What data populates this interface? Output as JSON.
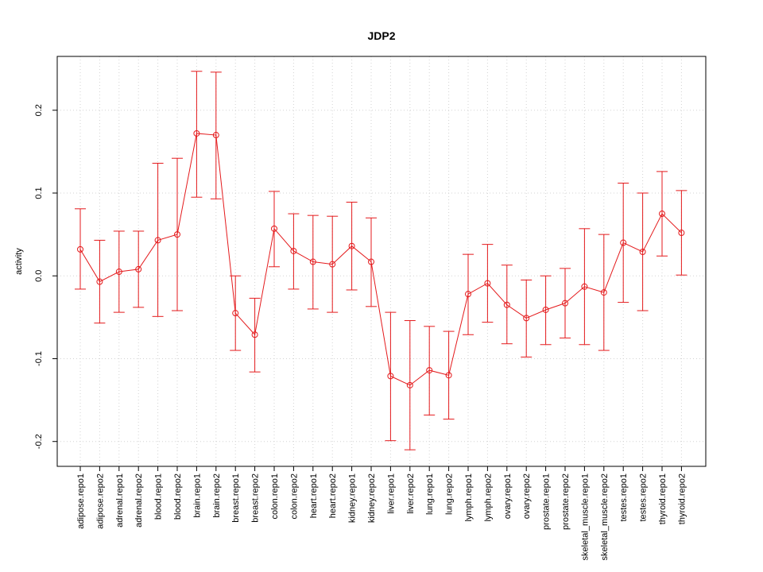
{
  "chart_data": {
    "type": "line",
    "title": "JDP2",
    "xlabel": "",
    "ylabel": "activity",
    "ylim": [
      -0.23,
      0.265
    ],
    "y_ticks": [
      -0.2,
      -0.1,
      0.0,
      0.1,
      0.2
    ],
    "y_tick_labels": [
      "-0.2",
      "-0.1",
      "0.0",
      "0.1",
      "0.2"
    ],
    "grid": true,
    "categories": [
      "adipose.repo1",
      "adipose.repo2",
      "adrenal.repo1",
      "adrenal.repo2",
      "blood.repo1",
      "blood.repo2",
      "brain.repo1",
      "brain.repo2",
      "breast.repo1",
      "breast.repo2",
      "colon.repo1",
      "colon.repo2",
      "heart.repo1",
      "heart.repo2",
      "kidney.repo1",
      "kidney.repo2",
      "liver.repo1",
      "liver.repo2",
      "lung.repo1",
      "lung.repo2",
      "lymph.repo1",
      "lymph.repo2",
      "ovary.repo1",
      "ovary.repo2",
      "prostate.repo1",
      "prostate.repo2",
      "skeletal_muscle.repo1",
      "skeletal_muscle.repo2",
      "testes.repo1",
      "testes.repo2",
      "thyroid.repo1",
      "thyroid.repo2"
    ],
    "series": [
      {
        "values": [
          0.032,
          -0.007,
          0.005,
          0.008,
          0.043,
          0.05,
          0.172,
          0.17,
          -0.045,
          -0.071,
          0.057,
          0.03,
          0.017,
          0.014,
          0.036,
          0.017,
          -0.121,
          -0.132,
          -0.114,
          -0.12,
          -0.022,
          -0.009,
          -0.035,
          -0.051,
          -0.041,
          -0.033,
          -0.013,
          -0.02,
          0.04,
          0.029,
          0.075,
          0.052
        ],
        "upper": [
          0.081,
          0.043,
          0.054,
          0.054,
          0.136,
          0.142,
          0.247,
          0.246,
          0.0,
          -0.027,
          0.102,
          0.075,
          0.073,
          0.072,
          0.089,
          0.07,
          -0.044,
          -0.054,
          -0.061,
          -0.067,
          0.026,
          0.038,
          0.013,
          -0.005,
          0.0,
          0.009,
          0.057,
          0.05,
          0.112,
          0.1,
          0.126,
          0.103
        ],
        "lower": [
          -0.016,
          -0.057,
          -0.044,
          -0.038,
          -0.049,
          -0.042,
          0.095,
          0.093,
          -0.09,
          -0.116,
          0.011,
          -0.016,
          -0.04,
          -0.044,
          -0.017,
          -0.037,
          -0.199,
          -0.21,
          -0.168,
          -0.173,
          -0.071,
          -0.056,
          -0.082,
          -0.098,
          -0.083,
          -0.075,
          -0.083,
          -0.09,
          -0.032,
          -0.042,
          0.024,
          0.001
        ],
        "color": "#e41a1c"
      }
    ]
  }
}
